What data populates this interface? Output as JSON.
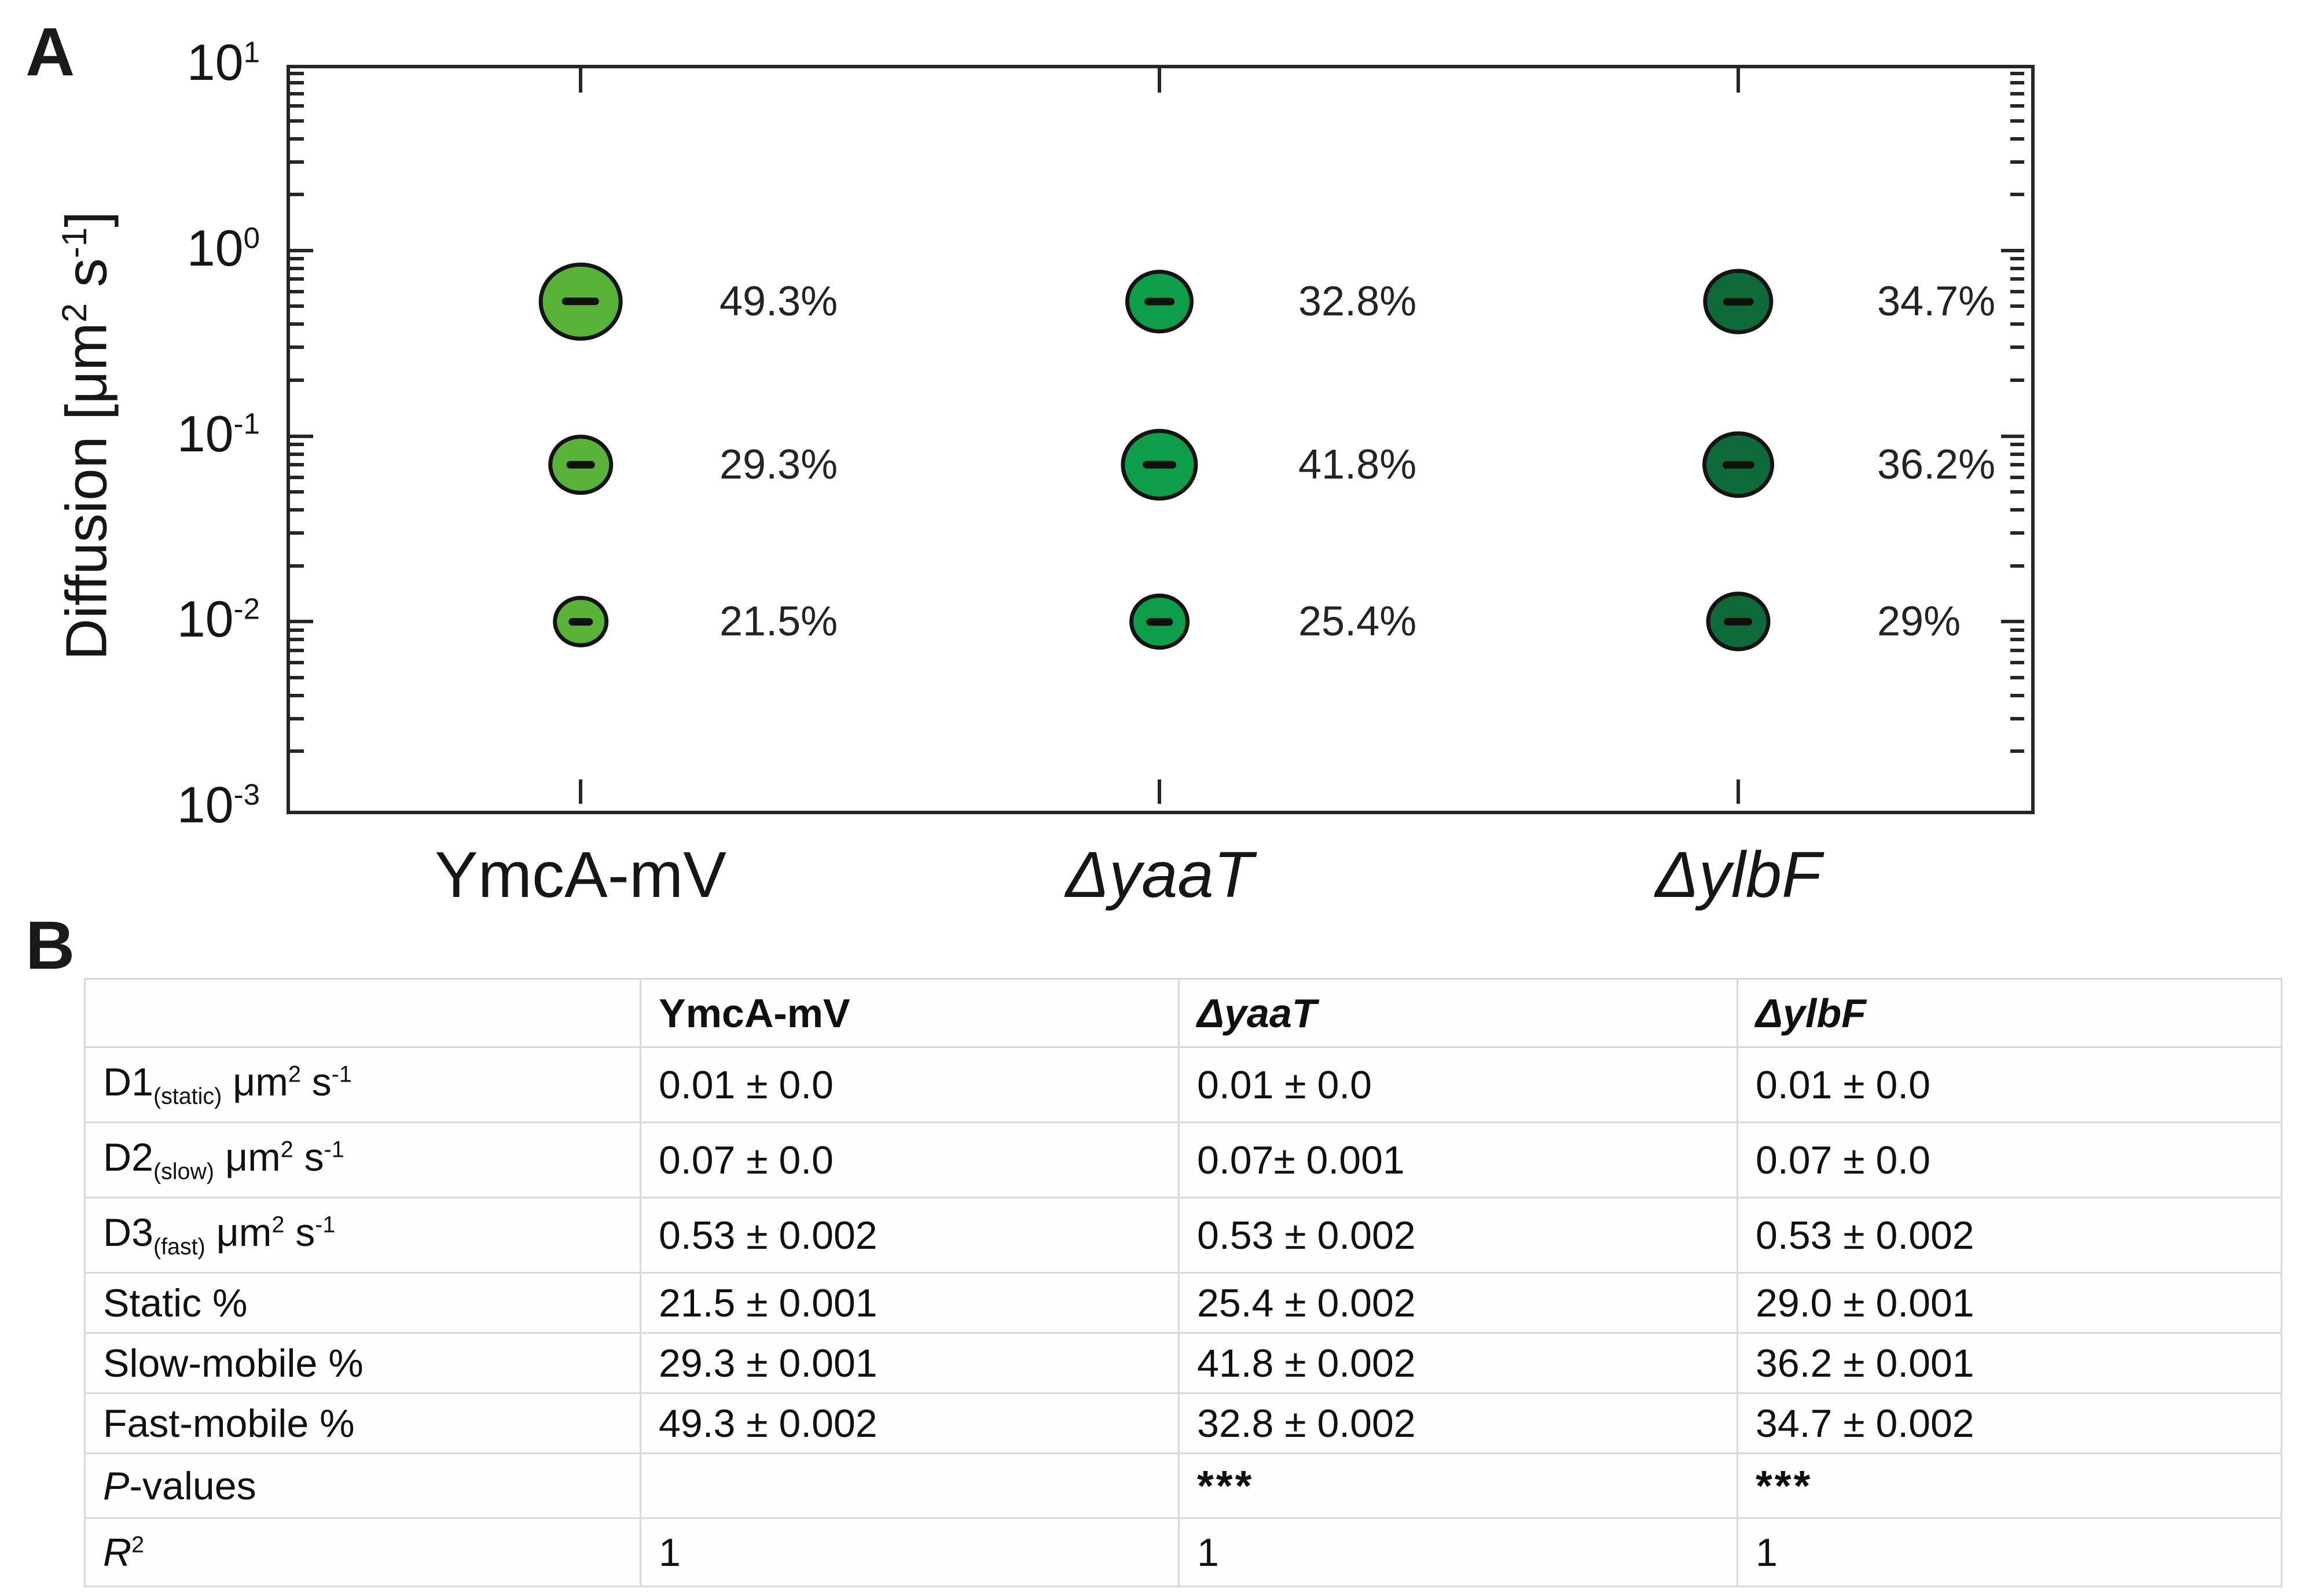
{
  "panelA": {
    "label": "A",
    "y_axis_title_html": "Diffusion [μm<sup>2</sup> s<sup>-1</sup>]",
    "y_tick_exponents": [
      1,
      0,
      -1,
      -2,
      -3
    ],
    "category_labels_html": [
      "YmcA-mV",
      "<i>ΔyaaT</i>",
      "<i>ΔylbF</i>"
    ]
  },
  "chart_data": {
    "type": "scatter",
    "subtype": "bubble-distribution",
    "title": "",
    "xlabel": "",
    "ylabel": "Diffusion [μm² s⁻¹]",
    "yscale": "log",
    "ylim": [
      0.001,
      10
    ],
    "grid": false,
    "categories": [
      "YmcA-mV",
      "ΔyaaT",
      "ΔylbF"
    ],
    "series": [
      {
        "name": "YmcA-mV",
        "bubble_color": "#5ab339",
        "points": [
          {
            "diffusion": 0.53,
            "percent": 49.3,
            "label": "49.3%"
          },
          {
            "diffusion": 0.07,
            "percent": 29.3,
            "label": "29.3%"
          },
          {
            "diffusion": 0.01,
            "percent": 21.5,
            "label": "21.5%"
          }
        ]
      },
      {
        "name": "ΔyaaT",
        "bubble_color": "#0e9d49",
        "points": [
          {
            "diffusion": 0.53,
            "percent": 32.8,
            "label": "32.8%"
          },
          {
            "diffusion": 0.07,
            "percent": 41.8,
            "label": "41.8%"
          },
          {
            "diffusion": 0.01,
            "percent": 25.4,
            "label": "25.4%"
          }
        ]
      },
      {
        "name": "ΔylbF",
        "bubble_color": "#0e6a38",
        "points": [
          {
            "diffusion": 0.53,
            "percent": 34.7,
            "label": "34.7%"
          },
          {
            "diffusion": 0.07,
            "percent": 36.2,
            "label": "36.2%"
          },
          {
            "diffusion": 0.01,
            "percent": 29.0,
            "label": "29%"
          }
        ]
      }
    ]
  },
  "panelB": {
    "label": "B",
    "columns_html": [
      "",
      "YmcA-mV",
      "<i>ΔyaaT</i>",
      "<i>ΔylbF</i>"
    ],
    "rows": [
      {
        "label_html": "D1<sub>(static)</sub> μm<sup>2</sup> s<sup>-1</sup>",
        "values": [
          "0.01 ± 0.0",
          "0.01 ± 0.0",
          "0.01 ± 0.0"
        ]
      },
      {
        "label_html": "D2<sub>(slow)</sub> μm<sup>2</sup> s<sup>-1</sup>",
        "values": [
          "0.07 ± 0.0",
          "0.07± 0.001",
          "0.07 ± 0.0"
        ]
      },
      {
        "label_html": "D3<sub>(fast)</sub> μm<sup>2</sup> s<sup>-1</sup>",
        "values": [
          "0.53 ± 0.002",
          "0.53 ± 0.002",
          "0.53 ± 0.002"
        ]
      },
      {
        "label_html": "Static %",
        "values": [
          "21.5 ± 0.001",
          "25.4 ± 0.002",
          "29.0 ± 0.001"
        ]
      },
      {
        "label_html": "Slow-mobile %",
        "values": [
          "29.3 ± 0.001",
          "41.8 ± 0.002",
          "36.2 ± 0.001"
        ]
      },
      {
        "label_html": "Fast-mobile %",
        "values": [
          "49.3 ± 0.002",
          "32.8 ± 0.002",
          "34.7 ± 0.002"
        ]
      },
      {
        "label_html": "<i>P</i>-values",
        "values": [
          "",
          "***",
          "***"
        ]
      },
      {
        "label_html": "<i>R</i><sup>2</sup>",
        "values": [
          "1",
          "1",
          "1"
        ]
      }
    ]
  }
}
